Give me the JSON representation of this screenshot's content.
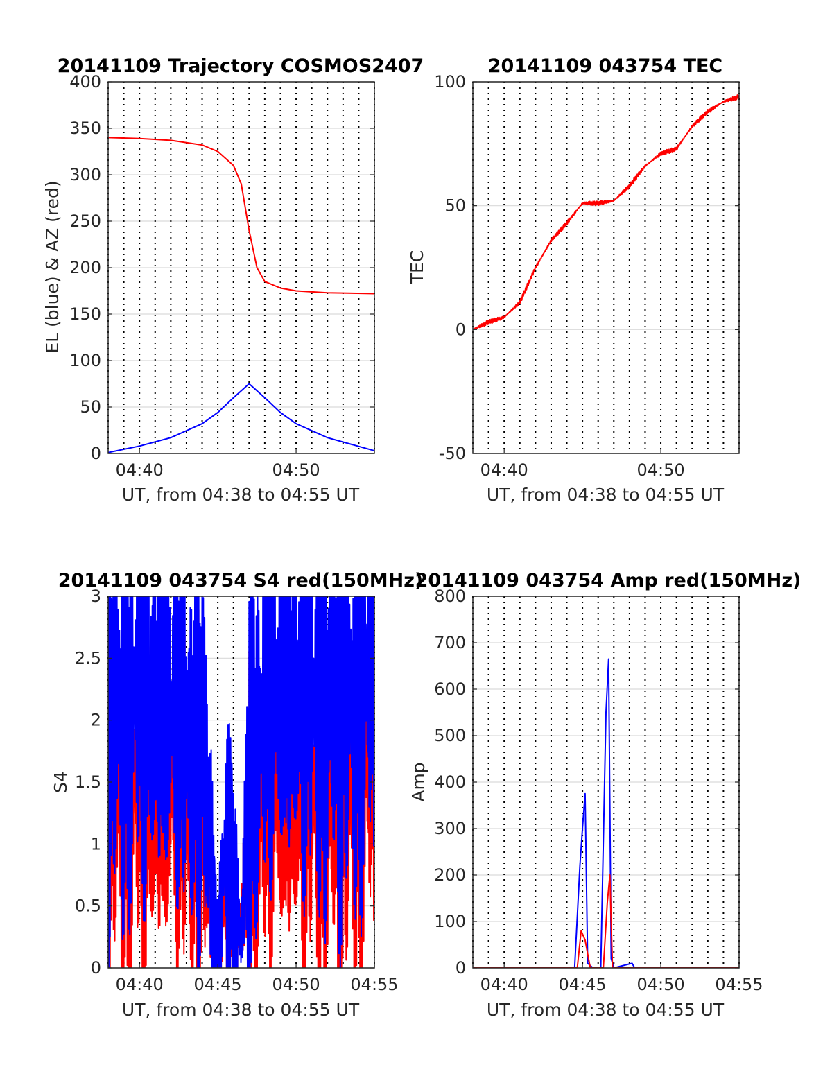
{
  "colors": {
    "red": "#ff0000",
    "blue": "#0000ff",
    "grid": "#d9d9d9",
    "axis": "#262626"
  },
  "chart_data": [
    {
      "id": "traj",
      "type": "line",
      "title": "20141109 Trajectory COSMOS2407",
      "xlabel": "UT, from 04:38 to 04:55 UT",
      "ylabel": "EL (blue) & AZ (red)",
      "xlim": [
        "04:38",
        "04:55"
      ],
      "ylim": [
        0,
        400
      ],
      "yticks": [
        "0",
        "50",
        "100",
        "150",
        "200",
        "250",
        "300",
        "350",
        "400"
      ],
      "xtick_labels": [
        "04:40",
        "04:50"
      ],
      "grid": "horizontal solid, vertical dotted each minute",
      "series": [
        {
          "color": "red",
          "x": [
            "04:38",
            "04:40",
            "04:42",
            "04:44",
            "04:45",
            "04:46",
            "04:46:30",
            "04:47",
            "04:47:30",
            "04:48",
            "04:49",
            "04:50",
            "04:52",
            "04:55"
          ],
          "values": [
            340,
            339,
            337,
            332,
            325,
            310,
            290,
            240,
            200,
            185,
            178,
            175,
            173,
            172
          ]
        },
        {
          "color": "blue",
          "x": [
            "04:38",
            "04:40",
            "04:42",
            "04:44",
            "04:45",
            "04:46",
            "04:47",
            "04:48",
            "04:49",
            "04:50",
            "04:52",
            "04:55"
          ],
          "values": [
            1,
            8,
            17,
            32,
            44,
            60,
            75,
            60,
            44,
            32,
            17,
            3
          ]
        }
      ]
    },
    {
      "id": "tec",
      "type": "line",
      "title": "20141109 043754 TEC",
      "xlabel": "UT, from 04:38 to 04:55 UT",
      "ylabel": "TEC",
      "xlim": [
        "04:38",
        "04:55"
      ],
      "ylim": [
        -50,
        100
      ],
      "yticks": [
        "-50",
        "0",
        "50",
        "100"
      ],
      "xtick_labels": [
        "04:40",
        "04:50"
      ],
      "grid": "horizontal solid, vertical dotted each minute",
      "series": [
        {
          "color": "red",
          "x": [
            "04:38",
            "04:39",
            "04:40",
            "04:41",
            "04:42",
            "04:43",
            "04:44",
            "04:45",
            "04:46",
            "04:47",
            "04:48",
            "04:49",
            "04:50",
            "04:51",
            "04:52",
            "04:53",
            "04:54",
            "04:55"
          ],
          "values": [
            0,
            3,
            5,
            11,
            25,
            36,
            43,
            51,
            51,
            52,
            58,
            66,
            71,
            73,
            82,
            88,
            92,
            94
          ]
        }
      ]
    },
    {
      "id": "s4",
      "type": "line",
      "title": "20141109 043754 S4 red(150MHz)",
      "xlabel": "UT, from 04:38 to 04:55 UT",
      "ylabel": "S4",
      "xlim": [
        "04:38",
        "04:55"
      ],
      "ylim": [
        0,
        3
      ],
      "yticks": [
        "0",
        "0.5",
        "1",
        "1.5",
        "2",
        "2.5",
        "3"
      ],
      "xtick_labels": [
        "04:40",
        "04:45",
        "04:50",
        "04:55"
      ],
      "grid": "horizontal solid, vertical dotted each minute",
      "series": [
        {
          "color": "red",
          "x": [
            "04:38",
            "04:40",
            "04:42",
            "04:44",
            "04:45",
            "04:45:30",
            "04:46",
            "04:46:30",
            "04:47",
            "04:48",
            "04:50",
            "04:52",
            "04:55"
          ],
          "values": [
            1.6,
            1.5,
            1.5,
            1.3,
            0.2,
            0.6,
            0.5,
            0.3,
            1.2,
            1.5,
            1.5,
            1.5,
            1.7
          ]
        },
        {
          "color": "blue",
          "x": [
            "04:38",
            "04:40",
            "04:42",
            "04:44",
            "04:45",
            "04:45:30",
            "04:46",
            "04:46:30",
            "04:47",
            "04:48",
            "04:50",
            "04:52",
            "04:55"
          ],
          "values": [
            2.1,
            2.2,
            2.0,
            1.8,
            0.2,
            1.1,
            0.8,
            0.2,
            1.6,
            2.1,
            2.2,
            2.2,
            2.3
          ]
        }
      ]
    },
    {
      "id": "amp",
      "type": "line",
      "title": "20141109 043754 Amp red(150MHz)",
      "xlabel": "UT, from 04:38 to 04:55 UT",
      "ylabel": "Amp",
      "xlim": [
        "04:38",
        "04:55"
      ],
      "ylim": [
        0,
        800
      ],
      "yticks": [
        "0",
        "100",
        "200",
        "300",
        "400",
        "500",
        "600",
        "700",
        "800"
      ],
      "xtick_labels": [
        "04:40",
        "04:45",
        "04:50",
        "04:55"
      ],
      "grid": "horizontal solid, vertical dotted each minute",
      "series": [
        {
          "color": "blue",
          "x": [
            "04:38",
            "04:44:30",
            "04:44:50",
            "04:45",
            "04:45:10",
            "04:45:20",
            "04:45:40",
            "04:46:10",
            "04:46:30",
            "04:46:40",
            "04:46:50",
            "04:47",
            "04:48:10",
            "04:48:20",
            "04:55"
          ],
          "values": [
            0,
            0,
            220,
            300,
            375,
            10,
            0,
            0,
            550,
            665,
            20,
            0,
            10,
            0,
            0
          ]
        },
        {
          "color": "red",
          "x": [
            "04:38",
            "04:44:40",
            "04:44:55",
            "04:45:10",
            "04:45:30",
            "04:46:20",
            "04:46:35",
            "04:46:45",
            "04:46:55",
            "04:55"
          ],
          "values": [
            0,
            0,
            80,
            60,
            0,
            0,
            140,
            200,
            0,
            0
          ]
        }
      ]
    }
  ]
}
